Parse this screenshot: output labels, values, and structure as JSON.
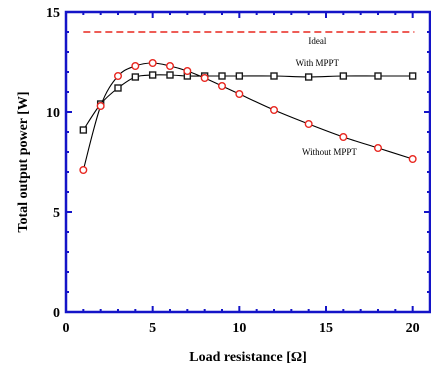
{
  "chart_data": {
    "type": "line",
    "title": "",
    "xlabel": "Load resistance [Ω]",
    "ylabel": "Total output power  [W]",
    "xlim": [
      0,
      21
    ],
    "ylim": [
      0,
      15
    ],
    "xticks": [
      0,
      5,
      10,
      15,
      20
    ],
    "yticks": [
      0,
      5,
      10,
      15
    ],
    "grid": false,
    "reference_line": {
      "name": "Ideal",
      "y": 14.0,
      "color": "#e8261f"
    },
    "series": [
      {
        "name": "With MPPT",
        "marker": "square",
        "color": "#1a1a1a",
        "x": [
          1,
          2,
          3,
          4,
          5,
          6,
          7,
          8,
          9,
          10,
          12,
          14,
          16,
          18,
          20
        ],
        "y": [
          9.1,
          10.4,
          11.2,
          11.75,
          11.85,
          11.85,
          11.8,
          11.8,
          11.8,
          11.8,
          11.8,
          11.75,
          11.8,
          11.8,
          11.8
        ]
      },
      {
        "name": "Without MPPT",
        "marker": "circle",
        "color": "#e8261f",
        "x": [
          1,
          2,
          3,
          4,
          5,
          6,
          7,
          8,
          9,
          10,
          12,
          14,
          16,
          18,
          20
        ],
        "y": [
          7.1,
          10.3,
          11.8,
          12.3,
          12.45,
          12.3,
          12.05,
          11.7,
          11.3,
          10.9,
          10.1,
          9.4,
          8.75,
          8.2,
          7.65
        ]
      }
    ],
    "annotations": [
      "Ideal",
      "With MPPT",
      "Without MPPT"
    ],
    "colors": {
      "axis": "#1414c8",
      "text": "#000000"
    }
  }
}
